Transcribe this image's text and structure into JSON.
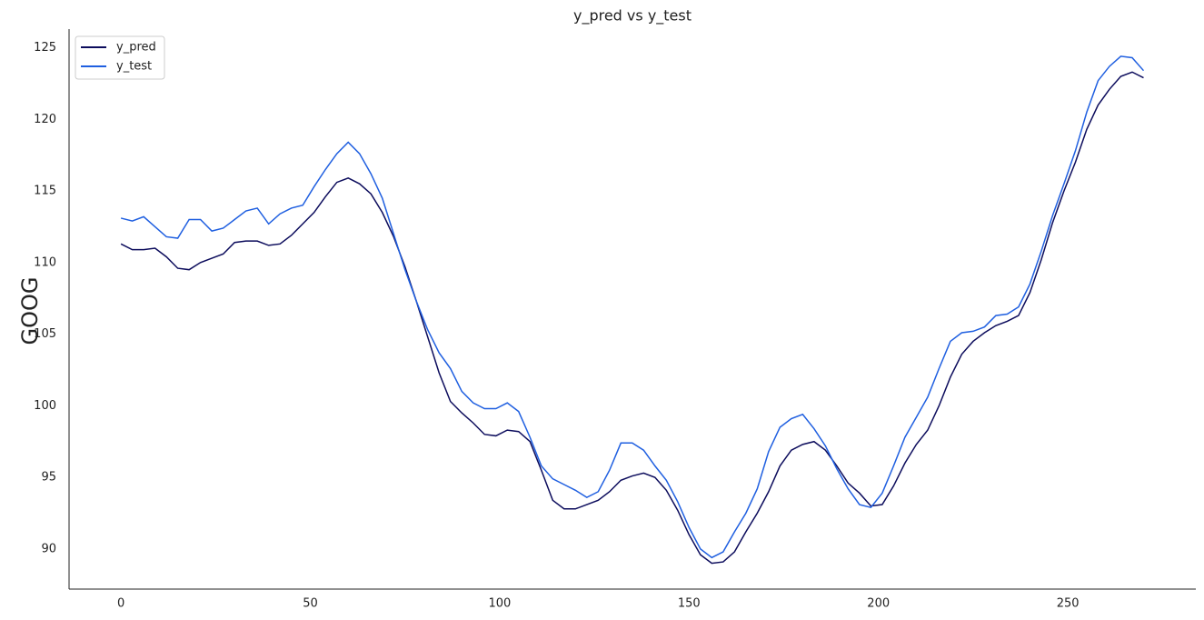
{
  "chart_data": {
    "type": "line",
    "title": "y_pred vs y_test",
    "y_label": "GOOG",
    "x": [
      0,
      3,
      6,
      9,
      12,
      15,
      18,
      21,
      24,
      27,
      30,
      33,
      36,
      39,
      42,
      45,
      48,
      51,
      54,
      57,
      60,
      63,
      66,
      69,
      72,
      75,
      78,
      81,
      84,
      87,
      90,
      93,
      96,
      99,
      102,
      105,
      108,
      111,
      114,
      117,
      120,
      123,
      126,
      129,
      132,
      135,
      138,
      141,
      144,
      147,
      150,
      153,
      156,
      159,
      162,
      165,
      168,
      171,
      174,
      177,
      180,
      183,
      186,
      189,
      192,
      195,
      198,
      201,
      204,
      207,
      210,
      213,
      216,
      219,
      222,
      225,
      228,
      231,
      234,
      237,
      240,
      243,
      246,
      249,
      252,
      255,
      258,
      261,
      264,
      267,
      270
    ],
    "series": [
      {
        "name": "y_pred",
        "color": "#0c0c5c",
        "values": [
          111.3,
          110.9,
          110.9,
          111.0,
          110.4,
          109.6,
          109.5,
          110.0,
          110.3,
          110.6,
          111.4,
          111.5,
          111.5,
          111.2,
          111.3,
          111.9,
          112.7,
          113.5,
          114.6,
          115.6,
          115.9,
          115.5,
          114.8,
          113.5,
          111.8,
          109.7,
          107.3,
          104.8,
          102.3,
          100.3,
          99.5,
          98.8,
          98.0,
          97.9,
          98.3,
          98.2,
          97.5,
          95.5,
          93.4,
          92.8,
          92.8,
          93.1,
          93.4,
          94.0,
          94.8,
          95.1,
          95.3,
          95.0,
          94.1,
          92.7,
          91.0,
          89.6,
          89.0,
          89.1,
          89.8,
          91.2,
          92.5,
          94.0,
          95.8,
          96.9,
          97.3,
          97.5,
          96.9,
          95.8,
          94.6,
          93.9,
          93.0,
          93.1,
          94.4,
          96.0,
          97.3,
          98.3,
          100.0,
          102.0,
          103.6,
          104.5,
          105.1,
          105.6,
          105.9,
          106.3,
          107.9,
          110.2,
          112.8,
          115.0,
          117.0,
          119.3,
          121.0,
          122.1,
          123.0,
          123.3,
          122.9
        ]
      },
      {
        "name": "y_test",
        "color": "#1f5fe0",
        "values": [
          113.1,
          112.9,
          113.2,
          112.5,
          111.8,
          111.7,
          113.0,
          113.0,
          112.2,
          112.4,
          113.0,
          113.6,
          113.8,
          112.7,
          113.4,
          113.8,
          114.0,
          115.3,
          116.5,
          117.6,
          118.4,
          117.6,
          116.2,
          114.5,
          112.0,
          109.5,
          107.3,
          105.3,
          103.7,
          102.6,
          101.0,
          100.2,
          99.8,
          99.8,
          100.2,
          99.6,
          97.8,
          95.8,
          94.9,
          94.5,
          94.1,
          93.6,
          94.0,
          95.5,
          97.4,
          97.4,
          96.9,
          95.8,
          94.8,
          93.3,
          91.5,
          90.0,
          89.4,
          89.8,
          91.2,
          92.5,
          94.2,
          96.8,
          98.5,
          99.1,
          99.4,
          98.4,
          97.2,
          95.6,
          94.2,
          93.1,
          92.9,
          93.9,
          95.8,
          97.8,
          99.2,
          100.6,
          102.6,
          104.5,
          105.1,
          105.2,
          105.5,
          106.3,
          106.4,
          106.9,
          108.5,
          110.8,
          113.3,
          115.5,
          117.8,
          120.5,
          122.7,
          123.7,
          124.4,
          124.3,
          123.4
        ]
      }
    ],
    "xlim": [
      -13.7,
      283.8
    ],
    "ylim": [
      87.2,
      126.3
    ],
    "xticks": [
      0,
      50,
      100,
      150,
      200,
      250
    ],
    "yticks": [
      90,
      95,
      100,
      105,
      110,
      115,
      120,
      125
    ],
    "legend": "upper left"
  }
}
